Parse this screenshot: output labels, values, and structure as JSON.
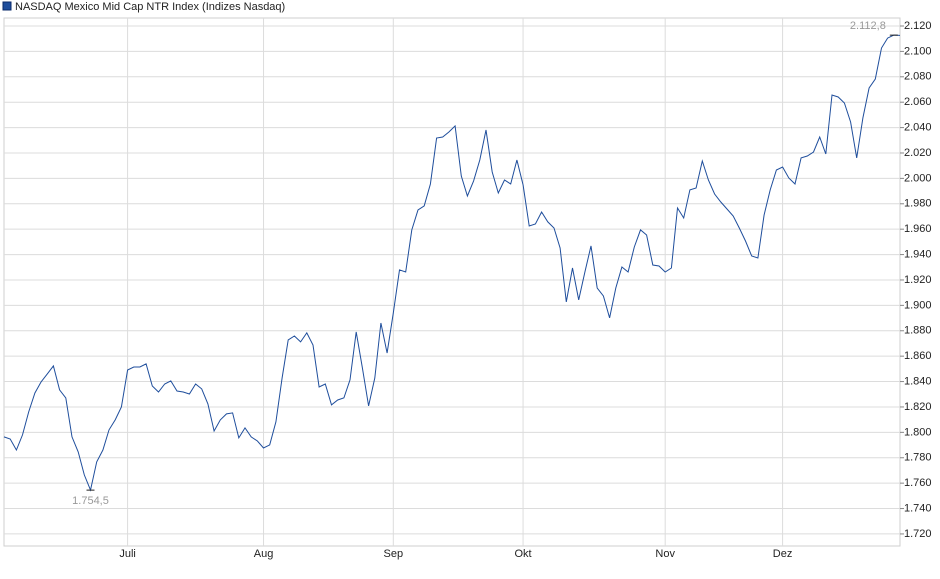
{
  "chart_data": {
    "type": "line",
    "categories": [
      null,
      null,
      null,
      null,
      null,
      null,
      null,
      null,
      null,
      null,
      null,
      null,
      null,
      null,
      null,
      null,
      null,
      null,
      null,
      null,
      "Juli",
      null,
      null,
      null,
      null,
      null,
      null,
      null,
      null,
      null,
      null,
      null,
      null,
      null,
      null,
      null,
      null,
      null,
      null,
      null,
      null,
      null,
      "Aug",
      null,
      null,
      null,
      null,
      null,
      null,
      null,
      null,
      null,
      null,
      null,
      null,
      null,
      null,
      null,
      null,
      null,
      null,
      null,
      null,
      "Sep",
      null,
      null,
      null,
      null,
      null,
      null,
      null,
      null,
      null,
      null,
      null,
      null,
      null,
      null,
      null,
      null,
      null,
      null,
      null,
      null,
      "Okt",
      null,
      null,
      null,
      null,
      null,
      null,
      null,
      null,
      null,
      null,
      null,
      null,
      null,
      null,
      null,
      null,
      null,
      null,
      null,
      null,
      null,
      null,
      "Nov",
      null,
      null,
      null,
      null,
      null,
      null,
      null,
      null,
      null,
      null,
      null,
      null,
      null,
      null,
      null,
      null,
      null,
      null,
      "Dez",
      null,
      null,
      null,
      null,
      null,
      null,
      null,
      null,
      null,
      null,
      null,
      null,
      null,
      null,
      null,
      null,
      null,
      null,
      null
    ],
    "series": [
      {
        "name": "NASDAQ Mexico Mid Cap NTR Index  (Indizes Nasdaq)",
        "color": "#1f4e9c",
        "values": [
          1796.4,
          1794.8,
          1786.1,
          1798.0,
          1816.1,
          1831.0,
          1839.7,
          1846.0,
          1852.3,
          1833.4,
          1827.1,
          1796.4,
          1784.6,
          1766.5,
          1754.5,
          1776.7,
          1786.1,
          1801.9,
          1809.8,
          1820.0,
          1849.1,
          1851.5,
          1851.5,
          1853.9,
          1836.5,
          1831.8,
          1838.1,
          1840.5,
          1832.6,
          1831.8,
          1830.2,
          1838.1,
          1834.2,
          1822.4,
          1801.1,
          1809.8,
          1814.5,
          1815.3,
          1795.6,
          1803.5,
          1796.4,
          1793.2,
          1787.7,
          1790.1,
          1808.2,
          1842.8,
          1872.8,
          1875.9,
          1871.2,
          1878.3,
          1868.8,
          1835.7,
          1838.1,
          1821.6,
          1825.5,
          1827.1,
          1841.3,
          1879.1,
          1850.7,
          1820.8,
          1842.8,
          1886.1,
          1862.5,
          1894.0,
          1927.9,
          1926.3,
          1959.4,
          1975.1,
          1978.3,
          1995.6,
          2031.8,
          2032.6,
          2036.5,
          2041.3,
          2001.9,
          1986.1,
          1998.0,
          2014.5,
          2038.1,
          2005.0,
          1988.5,
          1998.7,
          1995.6,
          2014.5,
          1994.8,
          1962.5,
          1964.1,
          1973.5,
          1965.7,
          1960.9,
          1945.2,
          1902.7,
          1929.4,
          1904.3,
          1926.3,
          1946.8,
          1913.7,
          1907.4,
          1890.1,
          1913.7,
          1930.2,
          1926.3,
          1946.0,
          1959.4,
          1955.4,
          1931.8,
          1931.0,
          1926.3,
          1929.4,
          1976.7,
          1968.8,
          1990.9,
          1992.4,
          2013.7,
          1998.7,
          1987.7,
          1981.4,
          1975.9,
          1970.4,
          1960.9,
          1950.7,
          1938.9,
          1937.3,
          1971.2,
          1990.9,
          2006.6,
          2009.0,
          2000.3,
          1995.6,
          2016.1,
          2017.6,
          2020.8,
          2032.6,
          2019.2,
          2065.7,
          2064.1,
          2059.4,
          2044.4,
          2016.1,
          2047.6,
          2071.2,
          2078.3,
          2102.7,
          2110.5,
          2112.8,
          2112.6
        ],
        "value_labels": [
          null,
          null,
          null,
          null,
          null,
          null,
          null,
          null,
          null,
          null,
          null,
          null,
          null,
          null,
          "1.754,5",
          null,
          null,
          null,
          null,
          null,
          null,
          null,
          null,
          null,
          null,
          null,
          null,
          null,
          null,
          null,
          null,
          null,
          null,
          null,
          null,
          null,
          null,
          null,
          null,
          null,
          null,
          null,
          null,
          null,
          null,
          null,
          null,
          null,
          null,
          null,
          null,
          null,
          null,
          null,
          null,
          null,
          null,
          null,
          null,
          null,
          null,
          null,
          null,
          null,
          null,
          null,
          null,
          null,
          null,
          null,
          null,
          null,
          null,
          null,
          null,
          null,
          null,
          null,
          null,
          null,
          null,
          null,
          null,
          null,
          null,
          null,
          null,
          null,
          null,
          null,
          null,
          null,
          null,
          null,
          null,
          null,
          null,
          null,
          null,
          null,
          null,
          null,
          null,
          null,
          null,
          null,
          null,
          null,
          null,
          null,
          null,
          null,
          null,
          null,
          null,
          null,
          null,
          null,
          null,
          null,
          null,
          null,
          null,
          null,
          null,
          null,
          null,
          null,
          null,
          null,
          null,
          null,
          null,
          null,
          null,
          null,
          null,
          null,
          null,
          null,
          null,
          null,
          null,
          null,
          "2.112,8",
          null
        ]
      }
    ],
    "ylim": [
      1710.5,
      2126.3
    ],
    "yticks": [
      {
        "value": 1720,
        "label": "1.720"
      },
      {
        "value": 1740,
        "label": "1.740"
      },
      {
        "value": 1760,
        "label": "1.760"
      },
      {
        "value": 1780,
        "label": "1.780"
      },
      {
        "value": 1800,
        "label": "1.800"
      },
      {
        "value": 1820,
        "label": "1.820"
      },
      {
        "value": 1840,
        "label": "1.840"
      },
      {
        "value": 1860,
        "label": "1.860"
      },
      {
        "value": 1880,
        "label": "1.880"
      },
      {
        "value": 1900,
        "label": "1.900"
      },
      {
        "value": 1920,
        "label": "1.920"
      },
      {
        "value": 1940,
        "label": "1.940"
      },
      {
        "value": 1960,
        "label": "1.960"
      },
      {
        "value": 1980,
        "label": "1.980"
      },
      {
        "value": 2000,
        "label": "2.000"
      },
      {
        "value": 2020,
        "label": "2.020"
      },
      {
        "value": 2040,
        "label": "2.040"
      },
      {
        "value": 2060,
        "label": "2.060"
      },
      {
        "value": 2080,
        "label": "2.080"
      },
      {
        "value": 2100,
        "label": "2.100"
      },
      {
        "value": 2120,
        "label": "2.120"
      }
    ],
    "grid": true
  }
}
